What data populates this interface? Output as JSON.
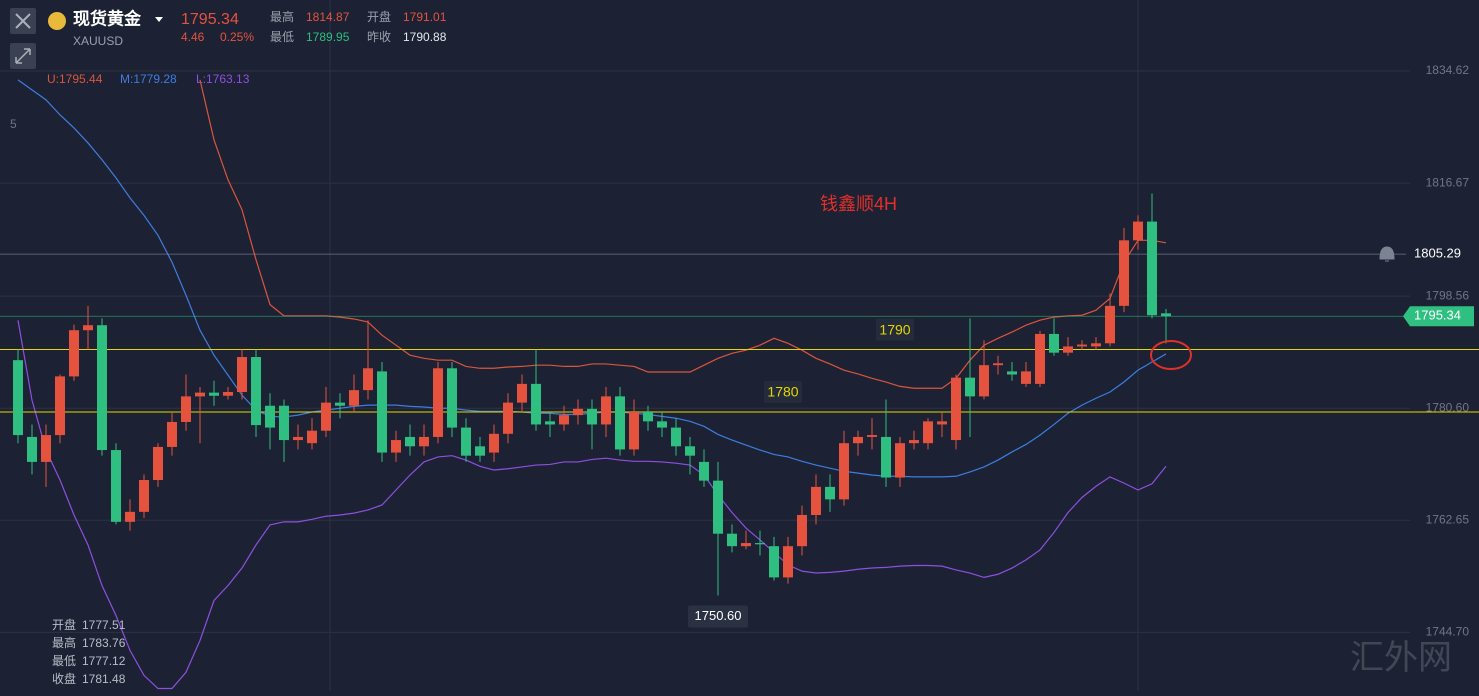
{
  "header": {
    "name": "现货黄金",
    "symbol": "XAUUSD",
    "price": 1795.34,
    "change": 4.46,
    "change_pct": "0.25%",
    "stats": [
      {
        "label": "最高",
        "value": 1814.87
      },
      {
        "label": "开盘",
        "value": 1791.01
      },
      {
        "label": "最低",
        "value": 1789.95
      },
      {
        "label": "昨收",
        "value": 1790.88
      }
    ]
  },
  "info_panel": [
    {
      "label": "开盘",
      "value": 1777.51
    },
    {
      "label": "最高",
      "value": 1783.76
    },
    {
      "label": "最低",
      "value": 1777.12
    },
    {
      "label": "收盘",
      "value": 1781.48
    }
  ],
  "left_axis_label": 5,
  "watermark": "汇外网",
  "chart_data": {
    "type": "candlestick",
    "annotation": "钱鑫顺4H",
    "ylim": [
      1735.3,
      1846.0
    ],
    "yticks": [
      1834.62,
      1816.67,
      1798.56,
      {
        "value": 1780.6,
        "label": "1780.60"
      },
      1762.65,
      {
        "value": 1744.7,
        "label": "1744.70"
      }
    ],
    "grid": true,
    "up_color": "#e5533f",
    "down_color": "#2fbf80",
    "open": [
      1788.3,
      1776,
      1772,
      1776.3,
      1785.7,
      1793.1,
      1793.9,
      1773.9,
      1762.4,
      1764,
      1769.1,
      1774.4,
      1778.4,
      1782.5,
      1783.1,
      1782.6,
      1783.2,
      1788.8,
      1781,
      1781,
      1775.5,
      1775,
      1777,
      1781.5,
      1781,
      1783.5,
      1786.5,
      1773.5,
      1776,
      1774.5,
      1776,
      1787,
      1777.5,
      1774.5,
      1773.5,
      1776.5,
      1781.5,
      1784.5,
      1778.5,
      1778,
      1779.5,
      1780.5,
      1778,
      1782.5,
      1774,
      1780,
      1778.5,
      1777.5,
      1774.5,
      1772,
      1769,
      1760.5,
      1758.5,
      1759,
      1758.5,
      1753.5,
      1758.5,
      1763.5,
      1768,
      1766,
      1775,
      1776,
      1776,
      1769.5,
      1775,
      1775,
      1778,
      1775.5,
      1785.5,
      1782.5,
      1787.5,
      1786.5,
      1784.5,
      1784.5,
      1792.5,
      1789.5,
      1790.5,
      1790.5,
      1791,
      1797,
      1807.5,
      1810.5,
      1795.8
    ],
    "high": [
      1790,
      1778,
      1778,
      1786,
      1794,
      1797,
      1795,
      1775,
      1766,
      1770,
      1775,
      1780,
      1786,
      1784,
      1785,
      1784,
      1790,
      1790,
      1783,
      1782,
      1778,
      1779,
      1784,
      1783,
      1786,
      1794.7,
      1788,
      1777,
      1778,
      1778,
      1788,
      1788,
      1779,
      1776,
      1778,
      1783,
      1786,
      1790,
      1780,
      1781,
      1782,
      1782,
      1784,
      1784,
      1782,
      1781,
      1780,
      1779,
      1776,
      1774,
      1772,
      1762,
      1761,
      1761,
      1760,
      1760,
      1765,
      1770,
      1770,
      1777,
      1777,
      1779,
      1782,
      1776,
      1777,
      1779,
      1780,
      1786,
      1795,
      1791.5,
      1789,
      1788,
      1788,
      1793,
      1795,
      1792,
      1791.5,
      1792,
      1799,
      1809.5,
      1811.5,
      1815,
      1796.5
    ],
    "low": [
      1775,
      1770,
      1768,
      1775,
      1785,
      1790,
      1773,
      1762,
      1761,
      1763,
      1768,
      1773,
      1777,
      1775,
      1781,
      1782,
      1782,
      1776,
      1774,
      1772,
      1774,
      1774,
      1776,
      1779,
      1780,
      1782,
      1772,
      1772,
      1773,
      1773,
      1775,
      1776,
      1772,
      1772,
      1772,
      1775,
      1780,
      1777,
      1776,
      1777,
      1778,
      1774,
      1776,
      1773,
      1773,
      1777,
      1776,
      1773,
      1770,
      1768,
      1750.6,
      1757.5,
      1758,
      1757,
      1753,
      1752.5,
      1757,
      1762,
      1764,
      1765,
      1773,
      1774,
      1768,
      1768,
      1774,
      1774,
      1776,
      1774,
      1776,
      1782,
      1786,
      1785,
      1784,
      1784,
      1789,
      1789,
      1790,
      1790,
      1790.5,
      1796,
      1806,
      1795,
      1791
    ],
    "close": [
      1776.3,
      1772,
      1776.3,
      1785.7,
      1793.1,
      1793.9,
      1773.9,
      1762.4,
      1764,
      1769.1,
      1774.4,
      1778.4,
      1782.5,
      1783.1,
      1782.6,
      1783.2,
      1788.8,
      1777.9,
      1777.5,
      1775.5,
      1776,
      1777,
      1781.5,
      1781,
      1783.5,
      1787,
      1773.5,
      1775.5,
      1774.5,
      1776,
      1787,
      1777.5,
      1773,
      1773,
      1776.5,
      1781.5,
      1784.5,
      1778,
      1778,
      1779.5,
      1780.5,
      1778,
      1782.5,
      1774,
      1780,
      1778.5,
      1777.5,
      1774.5,
      1773,
      1769,
      1760.5,
      1758.5,
      1759,
      1758.8,
      1753.5,
      1758.5,
      1763.5,
      1768,
      1766,
      1775,
      1776,
      1776.3,
      1769.5,
      1775,
      1775.5,
      1778.5,
      1778.5,
      1785.5,
      1782.5,
      1787.5,
      1787.8,
      1786,
      1786.5,
      1792.5,
      1789.5,
      1790.5,
      1790.8,
      1791,
      1797,
      1807.5,
      1810.5,
      1795.5,
      1795.34
    ],
    "bands": [
      {
        "name": "U:1795.44",
        "color": "#d9553d",
        "values": [
          null,
          null,
          null,
          null,
          null,
          null,
          null,
          null,
          null,
          null,
          null,
          null,
          null,
          1833.2,
          1823.6,
          1817.2,
          1812.4,
          1804.4,
          1797.2,
          1795.4,
          1795.4,
          1795.4,
          1795.4,
          1795.2,
          1794.9,
          1794.4,
          1792.3,
          1790.7,
          1789.1,
          1788.6,
          1788.3,
          1788.3,
          1787.3,
          1787.0,
          1787.0,
          1787.2,
          1787.3,
          1787.5,
          1787.5,
          1787.3,
          1787.3,
          1787.7,
          1787.7,
          1787.5,
          1787.3,
          1786.4,
          1786.4,
          1786.4,
          1786.4,
          1787.5,
          1788.6,
          1789.4,
          1789.9,
          1790.7,
          1791.8,
          1791.0,
          1789.9,
          1788.6,
          1787.7,
          1786.7,
          1786.1,
          1785.4,
          1784.8,
          1784.1,
          1783.8,
          1783.8,
          1783.8,
          1785.4,
          1788.3,
          1790.7,
          1791.8,
          1792.8,
          1793.9,
          1794.7,
          1795.2,
          1795.4,
          1795.5,
          1796.3,
          1798.2,
          1804.0,
          1807.5,
          1807.5,
          1807.1
        ]
      },
      {
        "name": "M:1779.28",
        "color": "#3d7de0",
        "values": [
          1833.2,
          1831.6,
          1830.0,
          1827.6,
          1825.5,
          1823.1,
          1820.4,
          1817.5,
          1814.3,
          1811.5,
          1808.3,
          1804.0,
          1798.7,
          1793.1,
          1789.1,
          1785.9,
          1782.7,
          1780.3,
          1779.3,
          1779.2,
          1779.5,
          1780.0,
          1780.3,
          1780.6,
          1780.9,
          1781.1,
          1781.1,
          1781.1,
          1780.9,
          1780.8,
          1780.6,
          1780.6,
          1780.3,
          1780.1,
          1780.1,
          1780.1,
          1780.0,
          1779.8,
          1779.8,
          1779.6,
          1779.6,
          1779.8,
          1780.0,
          1780.0,
          1779.8,
          1779.6,
          1779.3,
          1779.0,
          1778.5,
          1777.7,
          1776.4,
          1775.5,
          1774.7,
          1773.9,
          1773.2,
          1772.8,
          1772.1,
          1771.5,
          1771.0,
          1770.5,
          1770.2,
          1769.9,
          1769.7,
          1769.7,
          1769.6,
          1769.6,
          1769.6,
          1769.7,
          1770.4,
          1771.2,
          1772.3,
          1773.6,
          1774.8,
          1776.3,
          1778.0,
          1779.8,
          1781.1,
          1782.2,
          1783.2,
          1784.8,
          1786.7,
          1788.0,
          1789.3
        ]
      },
      {
        "name": "L:1763.13",
        "color": "#8e4fe0",
        "values": [
          1794.7,
          1781.9,
          1773.9,
          1769.1,
          1763.5,
          1758.7,
          1752.2,
          1747.4,
          1741.8,
          1737.8,
          1735.7,
          1735.7,
          1738.3,
          1743.4,
          1749.8,
          1752.2,
          1755.0,
          1758.7,
          1761.9,
          1762.4,
          1762.4,
          1762.8,
          1763.3,
          1763.5,
          1763.8,
          1764.3,
          1765.1,
          1767.5,
          1769.9,
          1772.0,
          1772.8,
          1773.0,
          1772.3,
          1771.3,
          1770.7,
          1770.9,
          1771.2,
          1771.5,
          1771.6,
          1772.0,
          1772.0,
          1772.4,
          1772.6,
          1772.3,
          1772.1,
          1772.1,
          1772.0,
          1771.8,
          1771.5,
          1769.9,
          1766.7,
          1763.9,
          1761.4,
          1759.5,
          1757.5,
          1755.5,
          1754.5,
          1754.2,
          1754.3,
          1754.5,
          1754.8,
          1755.0,
          1755.1,
          1755.3,
          1755.4,
          1755.4,
          1755.3,
          1754.7,
          1754.2,
          1753.5,
          1754.0,
          1755.0,
          1756.3,
          1757.9,
          1760.7,
          1763.9,
          1766.3,
          1768.1,
          1769.6,
          1768.6,
          1767.5,
          1768.5,
          1771.3
        ]
      }
    ],
    "hlines": [
      {
        "value": 1790,
        "color": "#e6d600"
      },
      {
        "value": 1780,
        "color": "#e6d600"
      }
    ],
    "price_lines": [
      {
        "value": 1805.29,
        "color": "#8c93a3"
      },
      {
        "value": 1795.34,
        "color": "#2fbf80"
      }
    ],
    "low_label": {
      "value": 1750.6,
      "label": "1750.60"
    }
  }
}
